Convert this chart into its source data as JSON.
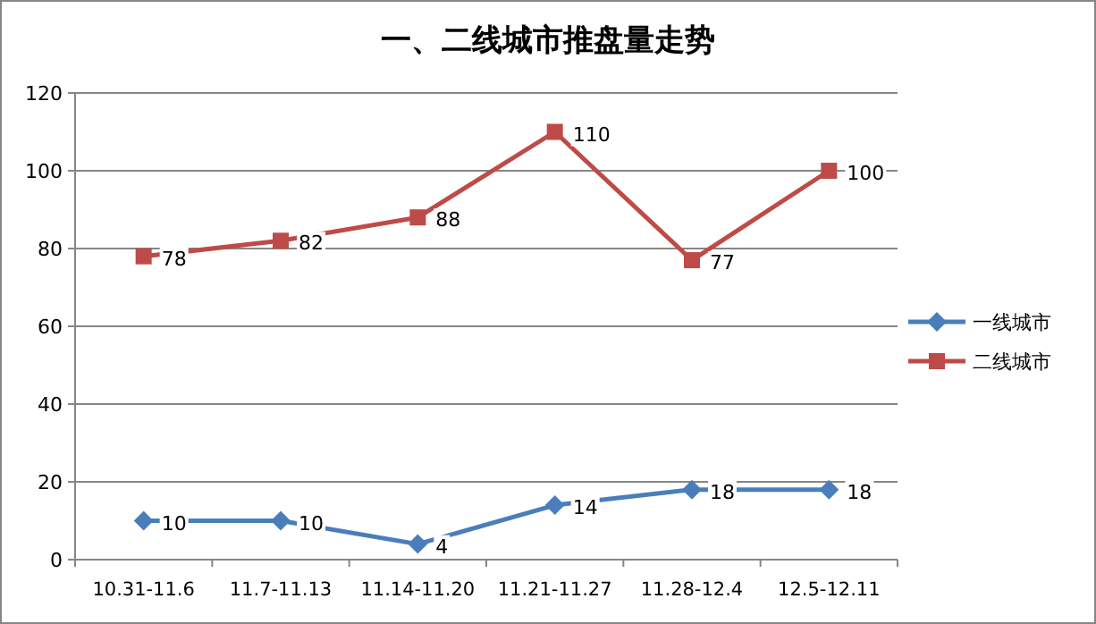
{
  "chart_data": {
    "type": "line",
    "title": "一、二线城市推盘量走势",
    "categories": [
      "10.31-11.6",
      "11.7-11.13",
      "11.14-11.20",
      "11.21-11.27",
      "11.28-12.4",
      "12.5-12.11"
    ],
    "series": [
      {
        "name": "一线城市",
        "color": "#4a7ebb",
        "marker": "diamond",
        "values": [
          10,
          10,
          4,
          14,
          18,
          18
        ]
      },
      {
        "name": "二线城市",
        "color": "#be4b48",
        "marker": "square",
        "values": [
          78,
          82,
          88,
          110,
          77,
          100
        ]
      }
    ],
    "ylim": [
      0,
      120
    ],
    "yticks": [
      0,
      20,
      40,
      60,
      80,
      100,
      120
    ],
    "grid": "y",
    "legend": "right",
    "data_labels": true
  }
}
